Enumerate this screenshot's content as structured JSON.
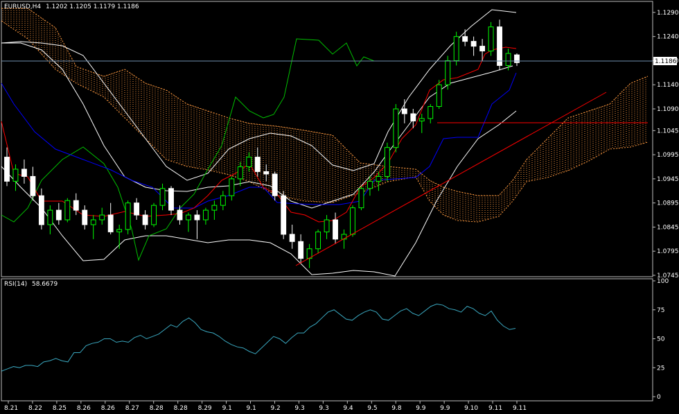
{
  "chart": {
    "symbol_title": "EURUSD,H4",
    "ohlc_readout": "1.1202 1.1205 1.1179 1.1186",
    "current_price": "1.1186",
    "rsi_title": "RSI(14)",
    "rsi_value": "58.6679"
  },
  "colors": {
    "background": "#000000",
    "bull_candle": "#00ff00",
    "bear_candle": "#ffffff",
    "bollinger": "#ffffff",
    "tenkan": "#ff0000",
    "kijun": "#0000ff",
    "chikou": "#00c000",
    "kumo": "#ff9a40",
    "rsi_line": "#3aa8c0",
    "trendline": "#ff0000",
    "price_line": "#7090b0"
  },
  "chart_data": [
    {
      "type": "candlestick",
      "title": "EURUSD,H4",
      "y_ticks": [
        "1.1290",
        "1.1240",
        "1.1190",
        "1.1140",
        "1.1090",
        "1.1045",
        "1.0995",
        "1.0945",
        "1.0895",
        "1.0845",
        "1.0795",
        "1.0745"
      ],
      "x_ticks": [
        "8.21",
        "8.22",
        "8.25",
        "8.26",
        "8.26",
        "8.27",
        "8.28",
        "8.28",
        "8.29",
        "9.1",
        "9.1",
        "9.2",
        "9.3",
        "9.3",
        "9.4",
        "9.5",
        "9.8",
        "9.9",
        "9.9",
        "9.10",
        "9.11",
        "9.11"
      ],
      "ylim": [
        1.0745,
        1.131
      ],
      "candles": [
        [
          1.099,
          1.101,
          1.093,
          1.094
        ],
        [
          1.094,
          1.0975,
          1.092,
          1.0965
        ],
        [
          1.0965,
          1.0985,
          1.0935,
          1.095
        ],
        [
          1.095,
          1.097,
          1.09,
          1.091
        ],
        [
          1.091,
          1.0925,
          1.084,
          1.085
        ],
        [
          1.085,
          1.089,
          1.083,
          1.088
        ],
        [
          1.088,
          1.0895,
          1.085,
          1.086
        ],
        [
          1.086,
          1.0905,
          1.0855,
          1.09
        ],
        [
          1.09,
          1.0915,
          1.087,
          1.088
        ],
        [
          1.088,
          1.089,
          1.084,
          1.085
        ],
        [
          1.085,
          1.087,
          1.082,
          1.086
        ],
        [
          1.086,
          1.0885,
          1.085,
          1.087
        ],
        [
          1.087,
          1.0895,
          1.083,
          1.0835
        ],
        [
          1.0835,
          1.085,
          1.08,
          1.084
        ],
        [
          1.084,
          1.09,
          1.083,
          1.0895
        ],
        [
          1.0895,
          1.0905,
          1.086,
          1.087
        ],
        [
          1.087,
          1.088,
          1.084,
          1.085
        ],
        [
          1.085,
          1.0895,
          1.0845,
          1.089
        ],
        [
          1.089,
          1.0935,
          1.088,
          1.0925
        ],
        [
          1.0925,
          1.093,
          1.087,
          1.088
        ],
        [
          1.088,
          1.089,
          1.085,
          1.086
        ],
        [
          1.086,
          1.0875,
          1.0835,
          1.087
        ],
        [
          1.087,
          1.088,
          1.082,
          1.086
        ],
        [
          1.086,
          1.0885,
          1.085,
          1.088
        ],
        [
          1.088,
          1.09,
          1.086,
          1.089
        ],
        [
          1.089,
          1.092,
          1.088,
          1.091
        ],
        [
          1.091,
          1.095,
          1.09,
          1.0945
        ],
        [
          1.0945,
          1.098,
          1.093,
          1.097
        ],
        [
          1.097,
          1.1,
          1.096,
          1.099
        ],
        [
          1.099,
          1.101,
          1.095,
          1.096
        ],
        [
          1.096,
          1.0975,
          1.094,
          1.0955
        ],
        [
          1.0955,
          1.096,
          1.09,
          1.091
        ],
        [
          1.091,
          1.092,
          1.082,
          1.083
        ],
        [
          1.083,
          1.085,
          1.08,
          1.0815
        ],
        [
          1.0815,
          1.083,
          1.077,
          1.078
        ],
        [
          1.078,
          1.081,
          1.076,
          1.08
        ],
        [
          1.08,
          1.084,
          1.079,
          1.0835
        ],
        [
          1.0835,
          1.087,
          1.082,
          1.086
        ],
        [
          1.086,
          1.0875,
          1.081,
          1.082
        ],
        [
          1.082,
          1.084,
          1.08,
          1.083
        ],
        [
          1.083,
          1.089,
          1.0825,
          1.0885
        ],
        [
          1.0885,
          1.093,
          1.088,
          1.0925
        ],
        [
          1.0925,
          1.095,
          1.091,
          1.094
        ],
        [
          1.094,
          1.096,
          1.092,
          1.095
        ],
        [
          1.095,
          1.102,
          1.094,
          1.101
        ],
        [
          1.101,
          1.11,
          1.1,
          1.109
        ],
        [
          1.109,
          1.111,
          1.106,
          1.108
        ],
        [
          1.108,
          1.109,
          1.105,
          1.1065
        ],
        [
          1.1065,
          1.108,
          1.104,
          1.107
        ],
        [
          1.107,
          1.11,
          1.106,
          1.1095
        ],
        [
          1.1095,
          1.115,
          1.109,
          1.114
        ],
        [
          1.114,
          1.12,
          1.113,
          1.119
        ],
        [
          1.119,
          1.125,
          1.118,
          1.124
        ],
        [
          1.124,
          1.1255,
          1.122,
          1.123
        ],
        [
          1.123,
          1.124,
          1.12,
          1.122
        ],
        [
          1.122,
          1.1235,
          1.119,
          1.121
        ],
        [
          1.121,
          1.127,
          1.12,
          1.126
        ],
        [
          1.126,
          1.1275,
          1.117,
          1.118
        ],
        [
          1.118,
          1.1215,
          1.117,
          1.1205
        ],
        [
          1.1202,
          1.1205,
          1.1179,
          1.1186
        ]
      ]
    },
    {
      "type": "line",
      "title": "RSI(14) 58.6679",
      "y_ticks": [
        "100",
        "75",
        "50",
        "25",
        "0"
      ],
      "ylim": [
        0,
        100
      ],
      "series": [
        {
          "values": [
            22,
            24,
            26,
            25,
            27,
            27,
            26,
            30,
            31,
            33,
            31,
            30,
            38,
            38,
            44,
            46,
            47,
            50,
            50,
            47,
            48,
            47,
            51,
            53,
            50,
            52,
            54,
            58,
            62,
            60,
            65,
            68,
            64,
            58,
            56,
            55,
            52,
            48,
            45,
            43,
            42,
            39,
            37,
            42,
            47,
            52,
            50,
            46,
            51,
            55,
            55,
            60,
            63,
            68,
            73,
            75,
            71,
            67,
            66,
            70,
            73,
            75,
            73,
            67,
            66,
            70,
            74,
            76,
            72,
            70,
            74,
            78,
            80,
            79,
            76,
            75,
            73,
            78,
            76,
            72,
            70,
            74,
            66,
            61,
            58,
            59
          ]
        }
      ]
    }
  ]
}
